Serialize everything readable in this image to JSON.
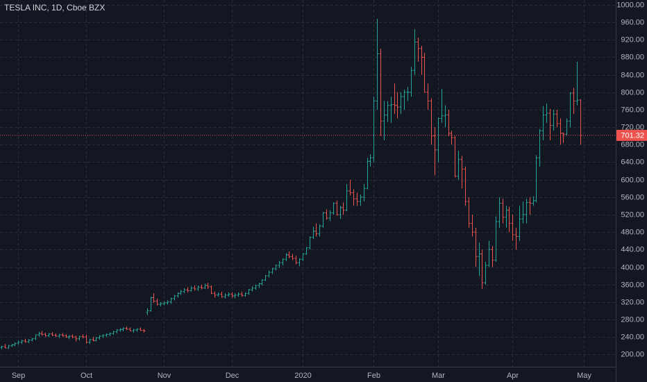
{
  "chart_data": {
    "type": "ohlc",
    "title": "TESLA INC, 1D, Cboe BZX",
    "up_color": "#26a69a",
    "down_color": "#ef5350",
    "grid": true,
    "ylim": [
      172,
      1011
    ],
    "yticks": [
      {
        "value": 200,
        "label": "200.00"
      },
      {
        "value": 240,
        "label": "240.00"
      },
      {
        "value": 280,
        "label": "280.00"
      },
      {
        "value": 320,
        "label": "320.00"
      },
      {
        "value": 360,
        "label": "360.00"
      },
      {
        "value": 400,
        "label": "400.00"
      },
      {
        "value": 440,
        "label": "440.00"
      },
      {
        "value": 480,
        "label": "480.00"
      },
      {
        "value": 520,
        "label": "520.00"
      },
      {
        "value": 560,
        "label": "560.00"
      },
      {
        "value": 600,
        "label": "600.00"
      },
      {
        "value": 640,
        "label": "640.00"
      },
      {
        "value": 680,
        "label": "680.00"
      },
      {
        "value": 720,
        "label": "720.00"
      },
      {
        "value": 760,
        "label": "760.00"
      },
      {
        "value": 800,
        "label": "800.00"
      },
      {
        "value": 840,
        "label": "840.00"
      },
      {
        "value": 880,
        "label": "880.00"
      },
      {
        "value": 920,
        "label": "920.00"
      },
      {
        "value": 960,
        "label": "960.00"
      },
      {
        "value": 1000,
        "label": "1000.00"
      }
    ],
    "xlim": [
      -0.4,
      181.5
    ],
    "xticks": [
      {
        "value": 5,
        "label": "Sep"
      },
      {
        "value": 25,
        "label": "Oct"
      },
      {
        "value": 48,
        "label": "Nov"
      },
      {
        "value": 68,
        "label": "Dec"
      },
      {
        "value": 89,
        "label": "2020"
      },
      {
        "value": 110,
        "label": "Feb"
      },
      {
        "value": 129,
        "label": "Mar"
      },
      {
        "value": 151,
        "label": "Apr"
      },
      {
        "value": 172,
        "label": "May"
      }
    ],
    "last_price": 701.32,
    "ohlc": [
      [
        216,
        220,
        212,
        218
      ],
      [
        218,
        224,
        214,
        215
      ],
      [
        215,
        222,
        213,
        220
      ],
      [
        220,
        224,
        217,
        222
      ],
      [
        222,
        228,
        219,
        225
      ],
      [
        226,
        232,
        222,
        228
      ],
      [
        228,
        234,
        224,
        231
      ],
      [
        231,
        236,
        227,
        229
      ],
      [
        229,
        235,
        226,
        233
      ],
      [
        233,
        238,
        230,
        236
      ],
      [
        236,
        246,
        233,
        245
      ],
      [
        245,
        252,
        241,
        248
      ],
      [
        248,
        254,
        243,
        246
      ],
      [
        246,
        250,
        241,
        243
      ],
      [
        243,
        249,
        240,
        247
      ],
      [
        247,
        251,
        242,
        244
      ],
      [
        244,
        248,
        240,
        242
      ],
      [
        242,
        247,
        238,
        245
      ],
      [
        245,
        249,
        240,
        243
      ],
      [
        243,
        246,
        238,
        240
      ],
      [
        240,
        244,
        235,
        242
      ],
      [
        242,
        246,
        237,
        240
      ],
      [
        240,
        243,
        230,
        236
      ],
      [
        236,
        243,
        232,
        241
      ],
      [
        241,
        246,
        237,
        240
      ],
      [
        240,
        245,
        225,
        228
      ],
      [
        228,
        236,
        224,
        234
      ],
      [
        234,
        240,
        230,
        232
      ],
      [
        232,
        240,
        230,
        238
      ],
      [
        238,
        244,
        234,
        242
      ],
      [
        242,
        246,
        238,
        244
      ],
      [
        244,
        248,
        240,
        246
      ],
      [
        246,
        250,
        242,
        248
      ],
      [
        248,
        254,
        245,
        252
      ],
      [
        252,
        258,
        248,
        256
      ],
      [
        256,
        260,
        252,
        257
      ],
      [
        257,
        262,
        253,
        260
      ],
      [
        260,
        264,
        256,
        258
      ],
      [
        258,
        262,
        253,
        254
      ],
      [
        254,
        259,
        250,
        256
      ],
      [
        256,
        260,
        252,
        258
      ],
      [
        258,
        262,
        254,
        255
      ],
      [
        255,
        258,
        250,
        254
      ],
      [
        296,
        306,
        290,
        300
      ],
      [
        300,
        332,
        298,
        330
      ],
      [
        330,
        340,
        318,
        322
      ],
      [
        322,
        328,
        312,
        315
      ],
      [
        315,
        320,
        310,
        316
      ],
      [
        316,
        322,
        312,
        318
      ],
      [
        318,
        324,
        314,
        320
      ],
      [
        320,
        330,
        316,
        328
      ],
      [
        328,
        336,
        324,
        334
      ],
      [
        334,
        342,
        330,
        340
      ],
      [
        340,
        348,
        336,
        344
      ],
      [
        344,
        352,
        340,
        348
      ],
      [
        348,
        354,
        342,
        346
      ],
      [
        346,
        356,
        344,
        352
      ],
      [
        352,
        358,
        346,
        350
      ],
      [
        350,
        358,
        345,
        354
      ],
      [
        354,
        360,
        349,
        352
      ],
      [
        352,
        362,
        350,
        358
      ],
      [
        358,
        364,
        350,
        355
      ],
      [
        355,
        358,
        338,
        340
      ],
      [
        340,
        344,
        330,
        336
      ],
      [
        336,
        342,
        332,
        338
      ],
      [
        338,
        344,
        330,
        332
      ],
      [
        332,
        340,
        328,
        336
      ],
      [
        336,
        342,
        332,
        338
      ],
      [
        338,
        342,
        330,
        334
      ],
      [
        334,
        340,
        328,
        336
      ],
      [
        336,
        342,
        332,
        338
      ],
      [
        338,
        344,
        332,
        335
      ],
      [
        335,
        342,
        332,
        340
      ],
      [
        340,
        350,
        336,
        348
      ],
      [
        348,
        356,
        344,
        352
      ],
      [
        352,
        360,
        348,
        358
      ],
      [
        358,
        364,
        352,
        362
      ],
      [
        362,
        372,
        358,
        370
      ],
      [
        370,
        382,
        368,
        380
      ],
      [
        380,
        392,
        376,
        388
      ],
      [
        388,
        398,
        384,
        396
      ],
      [
        396,
        406,
        392,
        404
      ],
      [
        404,
        414,
        398,
        410
      ],
      [
        410,
        420,
        404,
        418
      ],
      [
        418,
        432,
        414,
        428
      ],
      [
        428,
        436,
        420,
        424
      ],
      [
        424,
        430,
        416,
        420
      ],
      [
        420,
        426,
        406,
        410
      ],
      [
        410,
        420,
        402,
        418
      ],
      [
        418,
        432,
        414,
        430
      ],
      [
        430,
        446,
        428,
        444
      ],
      [
        444,
        470,
        440,
        468
      ],
      [
        468,
        492,
        464,
        482
      ],
      [
        482,
        500,
        470,
        476
      ],
      [
        476,
        498,
        470,
        494
      ],
      [
        494,
        526,
        490,
        524
      ],
      [
        524,
        532,
        508,
        512
      ],
      [
        512,
        530,
        505,
        524
      ],
      [
        524,
        548,
        520,
        546
      ],
      [
        546,
        552,
        518,
        520
      ],
      [
        520,
        540,
        510,
        536
      ],
      [
        536,
        548,
        520,
        530
      ],
      [
        530,
        590,
        528,
        574
      ],
      [
        574,
        600,
        564,
        570
      ],
      [
        570,
        578,
        540,
        556
      ],
      [
        556,
        570,
        540,
        550
      ],
      [
        550,
        566,
        540,
        560
      ],
      [
        560,
        590,
        550,
        580
      ],
      [
        580,
        650,
        578,
        642
      ],
      [
        642,
        658,
        630,
        650
      ],
      [
        650,
        790,
        640,
        780
      ],
      [
        780,
        968,
        760,
        888
      ],
      [
        888,
        900,
        700,
        734
      ],
      [
        734,
        780,
        690,
        748
      ],
      [
        748,
        780,
        732,
        770
      ],
      [
        770,
        790,
        730,
        772
      ],
      [
        772,
        820,
        750,
        770
      ],
      [
        770,
        800,
        740,
        766
      ],
      [
        766,
        800,
        750,
        790
      ],
      [
        790,
        806,
        760,
        800
      ],
      [
        800,
        812,
        780,
        800
      ],
      [
        800,
        858,
        790,
        850
      ],
      [
        850,
        944,
        840,
        915
      ],
      [
        915,
        925,
        870,
        900
      ],
      [
        900,
        906,
        840,
        880
      ],
      [
        880,
        890,
        800,
        800
      ],
      [
        800,
        820,
        760,
        780
      ],
      [
        780,
        786,
        680,
        700
      ],
      [
        700,
        720,
        610,
        668
      ],
      [
        668,
        742,
        640,
        740
      ],
      [
        740,
        808,
        730,
        746
      ],
      [
        746,
        770,
        720,
        748
      ],
      [
        748,
        760,
        700,
        706
      ],
      [
        706,
        712,
        680,
        696
      ],
      [
        696,
        700,
        605,
        608
      ],
      [
        608,
        666,
        600,
        646
      ],
      [
        646,
        654,
        580,
        624
      ],
      [
        624,
        630,
        540,
        550
      ],
      [
        550,
        560,
        490,
        500
      ],
      [
        500,
        520,
        470,
        480
      ],
      [
        480,
        490,
        400,
        424
      ],
      [
        424,
        456,
        380,
        430
      ],
      [
        430,
        440,
        350,
        364
      ],
      [
        364,
        412,
        360,
        404
      ],
      [
        404,
        460,
        400,
        440
      ],
      [
        440,
        448,
        400,
        416
      ],
      [
        416,
        516,
        412,
        504
      ],
      [
        504,
        560,
        490,
        546
      ],
      [
        546,
        556,
        500,
        514
      ],
      [
        514,
        540,
        490,
        530
      ],
      [
        530,
        538,
        480,
        500
      ],
      [
        500,
        520,
        460,
        474
      ],
      [
        474,
        490,
        440,
        470
      ],
      [
        470,
        540,
        460,
        510
      ],
      [
        510,
        550,
        500,
        520
      ],
      [
        520,
        556,
        500,
        548
      ],
      [
        548,
        560,
        520,
        546
      ],
      [
        546,
        562,
        540,
        552
      ],
      [
        552,
        656,
        548,
        650
      ],
      [
        650,
        716,
        630,
        712
      ],
      [
        712,
        768,
        690,
        748
      ],
      [
        748,
        774,
        730,
        752
      ],
      [
        752,
        762,
        690,
        724
      ],
      [
        724,
        760,
        712,
        750
      ],
      [
        750,
        760,
        720,
        728
      ],
      [
        728,
        740,
        680,
        706
      ],
      [
        706,
        708,
        684,
        704
      ],
      [
        704,
        740,
        700,
        734
      ],
      [
        734,
        800,
        720,
        798
      ],
      [
        798,
        810,
        750,
        780
      ],
      [
        780,
        870,
        770,
        782
      ],
      [
        782,
        784,
        680,
        701
      ]
    ]
  }
}
